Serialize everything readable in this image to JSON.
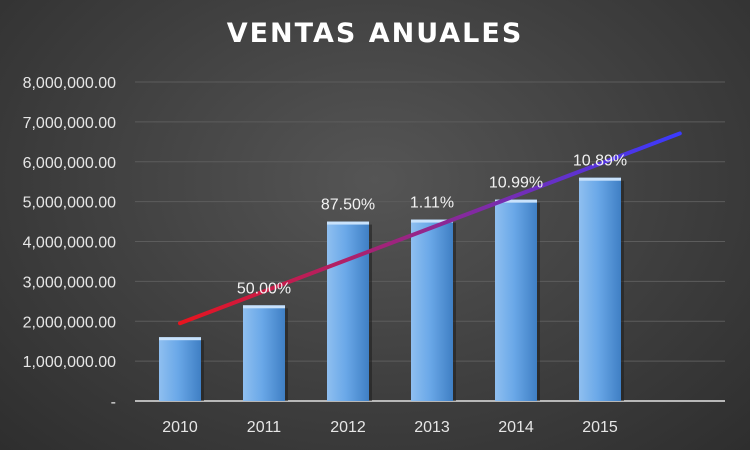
{
  "chart_data": {
    "type": "bar",
    "title": "VENTAS ANUALES",
    "xlabel": "",
    "ylabel": "",
    "categories": [
      "2010",
      "2011",
      "2012",
      "2013",
      "2014",
      "2015"
    ],
    "series": [
      {
        "values": [
          1600000,
          2400000,
          4500000,
          4550000,
          5050000,
          5600000
        ]
      }
    ],
    "growth_labels": [
      "",
      "50.00%",
      "87.50%",
      "1.11%",
      "10.99%",
      "10.89%"
    ],
    "y_tick_labels": [
      "-",
      "1,000,000.00",
      "2,000,000.00",
      "3,000,000.00",
      "4,000,000.00",
      "5,000,000.00",
      "6,000,000.00",
      "7,000,000.00",
      "8,000,000.00"
    ],
    "ylim": [
      0,
      8000000
    ],
    "grid": true,
    "trendline": {
      "type": "linear",
      "color_start": "#e8141e",
      "color_end": "#3a3aff"
    },
    "colors": {
      "bar": "#5b9bd5",
      "background": "#404040",
      "text": "#e6e6e6"
    }
  }
}
